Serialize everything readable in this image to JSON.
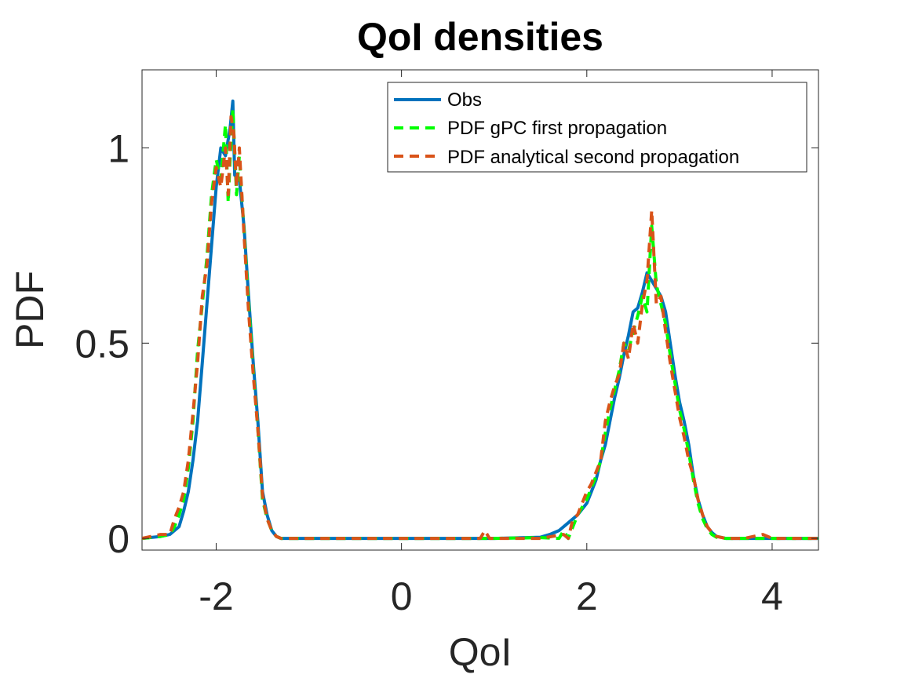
{
  "chart_data": {
    "type": "line",
    "title": "QoI densities",
    "xlabel": "QoI",
    "ylabel": "PDF",
    "xlim": [
      -2.8,
      4.5
    ],
    "ylim": [
      -0.03,
      1.2
    ],
    "xticks": [
      -2,
      0,
      2,
      4
    ],
    "xtick_labels": [
      "-2",
      "0",
      "2",
      "4"
    ],
    "yticks": [
      0,
      0.5,
      1
    ],
    "ytick_labels": [
      "0",
      "0.5",
      "1"
    ],
    "grid": false,
    "legend_position": "top-right",
    "series": [
      {
        "name": "Obs",
        "color": "#0072BD",
        "style": "solid",
        "x": [
          -2.8,
          -2.6,
          -2.5,
          -2.4,
          -2.35,
          -2.3,
          -2.25,
          -2.2,
          -2.15,
          -2.1,
          -2.05,
          -2.0,
          -1.95,
          -1.9,
          -1.85,
          -1.82,
          -1.8,
          -1.75,
          -1.7,
          -1.65,
          -1.6,
          -1.55,
          -1.5,
          -1.45,
          -1.4,
          -1.35,
          -1.3,
          -1.2,
          -1.0,
          0.0,
          0.5,
          1.0,
          1.5,
          1.6,
          1.7,
          1.8,
          1.9,
          2.0,
          2.05,
          2.1,
          2.15,
          2.2,
          2.25,
          2.3,
          2.35,
          2.4,
          2.45,
          2.5,
          2.55,
          2.6,
          2.65,
          2.7,
          2.75,
          2.8,
          2.85,
          2.9,
          2.95,
          3.0,
          3.05,
          3.1,
          3.15,
          3.2,
          3.25,
          3.3,
          3.35,
          3.4,
          3.5,
          3.7,
          4.0,
          4.5
        ],
        "y": [
          0.0,
          0.005,
          0.01,
          0.03,
          0.07,
          0.12,
          0.2,
          0.3,
          0.45,
          0.6,
          0.75,
          0.9,
          1.0,
          0.98,
          1.05,
          1.12,
          0.93,
          0.92,
          0.8,
          0.62,
          0.45,
          0.3,
          0.12,
          0.06,
          0.02,
          0.005,
          0.0,
          0.0,
          0.0,
          0.0,
          0.0,
          0.0,
          0.003,
          0.01,
          0.02,
          0.04,
          0.06,
          0.09,
          0.12,
          0.15,
          0.2,
          0.24,
          0.3,
          0.36,
          0.41,
          0.47,
          0.52,
          0.58,
          0.59,
          0.63,
          0.68,
          0.66,
          0.64,
          0.62,
          0.58,
          0.5,
          0.42,
          0.35,
          0.3,
          0.24,
          0.16,
          0.1,
          0.06,
          0.03,
          0.015,
          0.005,
          0.0,
          0.0,
          0.0,
          0.0
        ]
      },
      {
        "name": "PDF gPC first propagation",
        "color": "#00FF00",
        "style": "dashed",
        "x": [
          -2.8,
          -2.6,
          -2.5,
          -2.45,
          -2.4,
          -2.35,
          -2.3,
          -2.25,
          -2.2,
          -2.15,
          -2.1,
          -2.05,
          -2.0,
          -1.95,
          -1.9,
          -1.87,
          -1.85,
          -1.82,
          -1.78,
          -1.75,
          -1.7,
          -1.65,
          -1.6,
          -1.55,
          -1.5,
          -1.45,
          -1.4,
          -1.35,
          -1.3,
          -1.2,
          -1.0,
          0.0,
          1.0,
          1.5,
          1.7,
          1.75,
          1.8,
          1.9,
          2.0,
          2.05,
          2.1,
          2.15,
          2.2,
          2.25,
          2.3,
          2.35,
          2.4,
          2.45,
          2.5,
          2.55,
          2.6,
          2.65,
          2.7,
          2.75,
          2.8,
          2.85,
          2.9,
          2.95,
          3.0,
          3.05,
          3.1,
          3.15,
          3.2,
          3.25,
          3.3,
          3.35,
          3.4,
          3.5,
          3.7,
          4.0,
          4.5
        ],
        "y": [
          0.0,
          0.005,
          0.01,
          0.03,
          0.06,
          0.1,
          0.18,
          0.3,
          0.48,
          0.6,
          0.72,
          0.88,
          0.97,
          0.92,
          1.06,
          0.86,
          0.97,
          1.1,
          0.88,
          0.98,
          0.79,
          0.6,
          0.43,
          0.28,
          0.1,
          0.05,
          0.02,
          0.005,
          0.0,
          0.0,
          0.0,
          0.0,
          0.0,
          0.002,
          0.0,
          0.02,
          0.0,
          0.06,
          0.1,
          0.13,
          0.16,
          0.2,
          0.27,
          0.33,
          0.38,
          0.43,
          0.5,
          0.48,
          0.53,
          0.57,
          0.62,
          0.58,
          0.8,
          0.65,
          0.6,
          0.55,
          0.47,
          0.4,
          0.33,
          0.28,
          0.22,
          0.15,
          0.09,
          0.05,
          0.025,
          0.01,
          0.003,
          0.0,
          0.0,
          0.0,
          0.0
        ]
      },
      {
        "name": "PDF analytical second propagation",
        "color": "#D95319",
        "style": "dashed",
        "x": [
          -2.8,
          -2.6,
          -2.5,
          -2.45,
          -2.4,
          -2.35,
          -2.3,
          -2.25,
          -2.2,
          -2.15,
          -2.1,
          -2.05,
          -2.0,
          -1.95,
          -1.9,
          -1.87,
          -1.84,
          -1.81,
          -1.78,
          -1.75,
          -1.7,
          -1.65,
          -1.6,
          -1.55,
          -1.5,
          -1.45,
          -1.4,
          -1.35,
          -1.3,
          -1.2,
          -1.0,
          0.0,
          0.85,
          0.9,
          0.95,
          1.0,
          1.5,
          1.75,
          1.8,
          1.85,
          1.9,
          2.0,
          2.05,
          2.1,
          2.15,
          2.2,
          2.25,
          2.3,
          2.35,
          2.4,
          2.45,
          2.5,
          2.55,
          2.6,
          2.65,
          2.7,
          2.75,
          2.8,
          2.85,
          2.9,
          2.95,
          3.0,
          3.05,
          3.1,
          3.15,
          3.2,
          3.25,
          3.3,
          3.35,
          3.4,
          3.5,
          3.7,
          3.9,
          4.0,
          4.5
        ],
        "y": [
          0.0,
          0.01,
          0.01,
          0.05,
          0.08,
          0.12,
          0.2,
          0.32,
          0.45,
          0.62,
          0.7,
          0.86,
          0.95,
          0.9,
          1.0,
          0.88,
          1.08,
          1.04,
          0.9,
          1.0,
          0.78,
          0.58,
          0.42,
          0.28,
          0.11,
          0.05,
          0.02,
          0.005,
          0.0,
          0.0,
          0.0,
          0.0,
          0.0,
          0.02,
          0.0,
          0.0,
          0.0,
          0.01,
          0.0,
          0.05,
          0.06,
          0.12,
          0.14,
          0.17,
          0.2,
          0.3,
          0.35,
          0.39,
          0.42,
          0.5,
          0.46,
          0.55,
          0.5,
          0.6,
          0.66,
          0.84,
          0.6,
          0.62,
          0.53,
          0.45,
          0.38,
          0.31,
          0.26,
          0.2,
          0.16,
          0.1,
          0.06,
          0.03,
          0.015,
          0.005,
          0.0,
          0.0,
          0.01,
          0.0,
          0.0
        ]
      }
    ]
  }
}
